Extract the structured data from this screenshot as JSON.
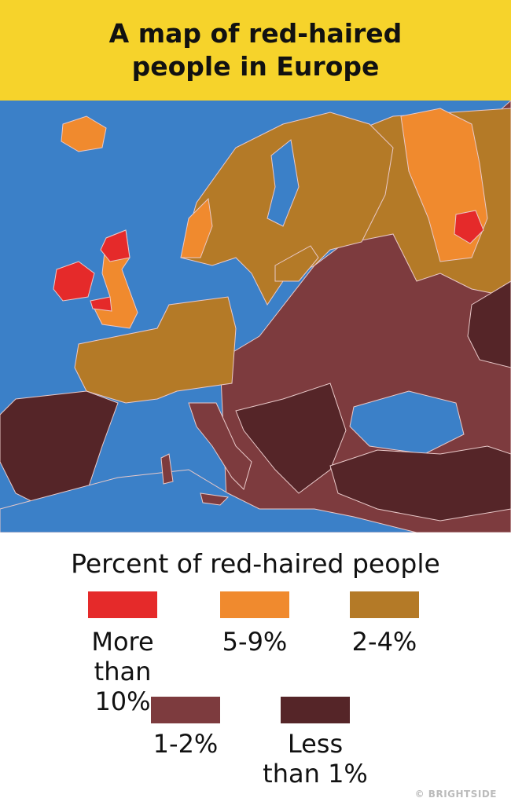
{
  "title": "A map of red-haired people in Europe",
  "legend": {
    "title": "Percent of red-haired people",
    "items": [
      {
        "label": "More than 10%",
        "color": "#e52a2a"
      },
      {
        "label": "5-9%",
        "color": "#f08a2e"
      },
      {
        "label": "2-4%",
        "color": "#b47a27"
      },
      {
        "label": "1-2%",
        "color": "#7d3b3e"
      },
      {
        "label": "Less than 1%",
        "color": "#552528"
      }
    ]
  },
  "credit": "© BRIGHTSIDE"
}
